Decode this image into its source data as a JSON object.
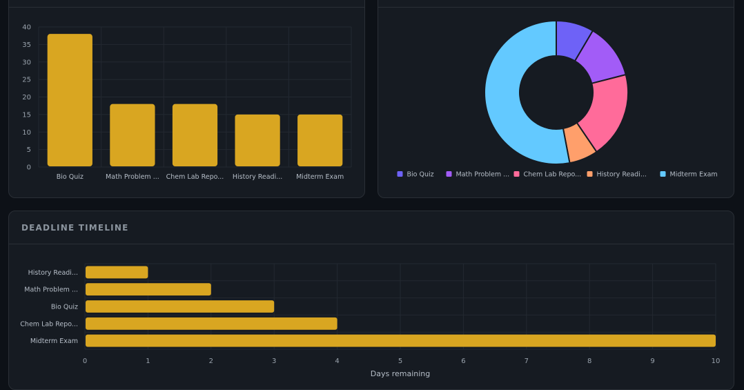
{
  "colors": {
    "bar": "#d9a621",
    "grid": "#232931",
    "tick_text": "#9aa3ad",
    "axis_text": "#b6bec8"
  },
  "chart_data": [
    {
      "type": "bar",
      "categories": [
        "Bio Quiz",
        "Math Problem ...",
        "Chem Lab Repo...",
        "History Readi...",
        "Midterm Exam"
      ],
      "values": [
        38,
        18,
        18,
        15,
        15
      ],
      "ylim": [
        0,
        40
      ],
      "yticks": [
        0,
        5,
        10,
        15,
        20,
        25,
        30,
        35,
        40
      ],
      "grid": true
    },
    {
      "type": "pie",
      "donut": true,
      "labels": [
        "Bio Quiz",
        "Math Problem ...",
        "Chem Lab Repo...",
        "History Readi...",
        "Midterm Exam"
      ],
      "values": [
        8.5,
        12.5,
        19.5,
        6.5,
        53
      ],
      "colors": [
        "#6e62f7",
        "#a25cf7",
        "#ff6b9a",
        "#ff9f6b",
        "#63c9ff"
      ],
      "legend": "bottom"
    },
    {
      "type": "bar",
      "orientation": "horizontal",
      "title": "DEADLINE TIMELINE",
      "categories": [
        "History Readi...",
        "Math Problem ...",
        "Bio Quiz",
        "Chem Lab Repo...",
        "Midterm Exam"
      ],
      "values": [
        1,
        2,
        3,
        4,
        10
      ],
      "xlabel": "Days remaining",
      "xlim": [
        0,
        10
      ],
      "xticks": [
        0,
        1,
        2,
        3,
        4,
        5,
        6,
        7,
        8,
        9,
        10
      ],
      "grid": true
    }
  ]
}
